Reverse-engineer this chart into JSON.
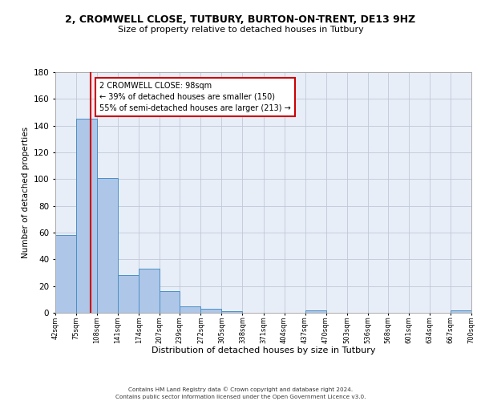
{
  "title": "2, CROMWELL CLOSE, TUTBURY, BURTON-ON-TRENT, DE13 9HZ",
  "subtitle": "Size of property relative to detached houses in Tutbury",
  "xlabel": "Distribution of detached houses by size in Tutbury",
  "ylabel": "Number of detached properties",
  "bin_edges": [
    42,
    75,
    108,
    141,
    174,
    207,
    239,
    272,
    305,
    338,
    371,
    404,
    437,
    470,
    503,
    536,
    568,
    601,
    634,
    667,
    700
  ],
  "bin_heights": [
    58,
    145,
    101,
    28,
    33,
    16,
    5,
    3,
    1,
    0,
    0,
    0,
    2,
    0,
    0,
    0,
    0,
    0,
    0,
    2
  ],
  "bar_color": "#aec6e8",
  "bar_edge_color": "#4a90c4",
  "property_line_x": 98,
  "property_line_color": "#cc0000",
  "annotation_line1": "2 CROMWELL CLOSE: 98sqm",
  "annotation_line2": "← 39% of detached houses are smaller (150)",
  "annotation_line3": "55% of semi-detached houses are larger (213) →",
  "annotation_box_color": "#ffffff",
  "annotation_box_edge": "#cc0000",
  "ylim": [
    0,
    180
  ],
  "yticks": [
    0,
    20,
    40,
    60,
    80,
    100,
    120,
    140,
    160,
    180
  ],
  "tick_labels": [
    "42sqm",
    "75sqm",
    "108sqm",
    "141sqm",
    "174sqm",
    "207sqm",
    "239sqm",
    "272sqm",
    "305sqm",
    "338sqm",
    "371sqm",
    "404sqm",
    "437sqm",
    "470sqm",
    "503sqm",
    "536sqm",
    "568sqm",
    "601sqm",
    "634sqm",
    "667sqm",
    "700sqm"
  ],
  "bg_color": "#e8eef8",
  "footer_line1": "Contains HM Land Registry data © Crown copyright and database right 2024.",
  "footer_line2": "Contains public sector information licensed under the Open Government Licence v3.0."
}
